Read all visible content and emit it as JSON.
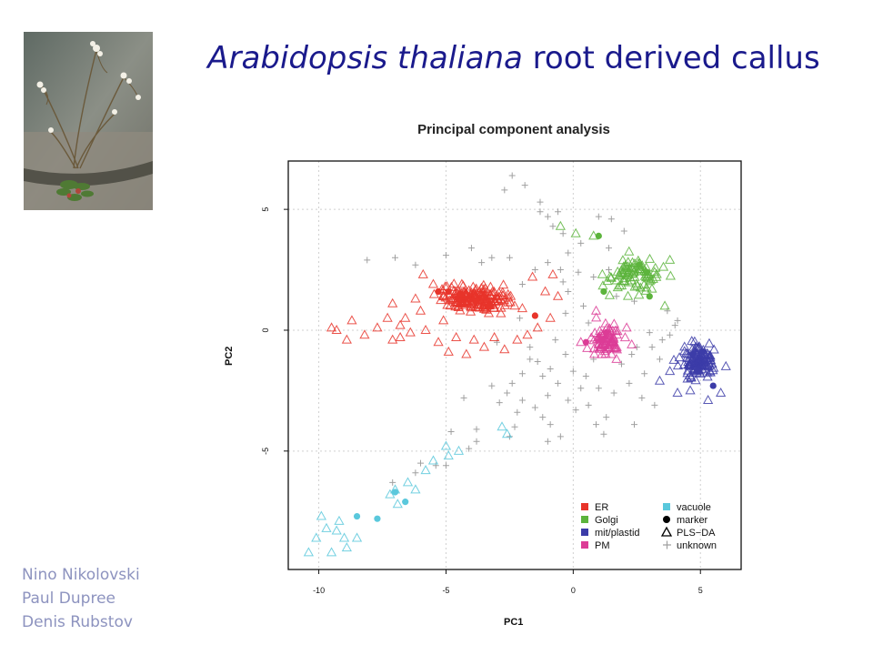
{
  "slide": {
    "title_italic": "Arabidopsis thaliana",
    "title_rest": " root derived callus",
    "authors": [
      "Nino Nikolovski",
      "Paul Dupree",
      "Denis Rubstov"
    ]
  },
  "colors": {
    "title": "#1a1a8c",
    "authors": "#8d93bf",
    "ER": "#e8342a",
    "Golgi": "#5cb43c",
    "mit_plastid": "#3c3ca8",
    "PM": "#dc3c96",
    "vacuole": "#5ac8dc",
    "marker": "#000000",
    "unknown": "#a0a0a0"
  },
  "photo": {
    "icon": "arabidopsis-plant-photo"
  },
  "chart_data": {
    "type": "scatter",
    "title": "Principal component analysis",
    "xlabel": "PC1",
    "ylabel": "PC2",
    "xlim": [
      -11.2,
      6.6
    ],
    "ylim": [
      -9.9,
      7
    ],
    "xticks": [
      -10,
      -5,
      0,
      5
    ],
    "yticks": [
      -5,
      0,
      5
    ],
    "grid": true,
    "legend_position": "bottom-right",
    "legend": [
      {
        "label": "ER",
        "symbol": "square",
        "color_key": "ER"
      },
      {
        "label": "vacuole",
        "symbol": "square",
        "color_key": "vacuole"
      },
      {
        "label": "Golgi",
        "symbol": "square",
        "color_key": "Golgi"
      },
      {
        "label": "marker",
        "symbol": "dot",
        "color_key": "marker"
      },
      {
        "label": "mit/plastid",
        "symbol": "square",
        "color_key": "mit_plastid"
      },
      {
        "label": "PLS−DA",
        "symbol": "triangle",
        "color_key": "marker"
      },
      {
        "label": "PM",
        "symbol": "square",
        "color_key": "PM"
      },
      {
        "label": "unknown",
        "symbol": "plus",
        "color_key": "unknown"
      }
    ],
    "series": [
      {
        "name": "ER",
        "color_key": "ER",
        "pls_da_count": 190,
        "pls_da_core": {
          "x_center": -3.8,
          "y_center": 1.3,
          "x_spread": 1.2,
          "y_spread": 0.45
        },
        "pls_da_tail": [
          [
            -9.5,
            0.1
          ],
          [
            -9.3,
            0
          ],
          [
            -8.9,
            -0.4
          ],
          [
            -8.7,
            0.4
          ],
          [
            -8.2,
            -0.2
          ],
          [
            -7.7,
            0.1
          ],
          [
            -7.3,
            0.5
          ],
          [
            -7.1,
            -0.4
          ],
          [
            -6.8,
            0.2
          ],
          [
            -6.6,
            0.5
          ],
          [
            -6.4,
            -0.1
          ],
          [
            -6.2,
            1.3
          ],
          [
            -6.0,
            0.8
          ],
          [
            -5.8,
            0
          ],
          [
            -5.5,
            1.9
          ],
          [
            -5.3,
            -0.5
          ],
          [
            -5.1,
            0.4
          ],
          [
            -4.9,
            -0.9
          ],
          [
            -4.6,
            -0.3
          ],
          [
            -4.2,
            -1.0
          ],
          [
            -3.9,
            -0.4
          ],
          [
            -3.5,
            -0.7
          ],
          [
            -3.1,
            -0.3
          ],
          [
            -2.7,
            -0.8
          ],
          [
            -2.2,
            -0.4
          ],
          [
            -1.8,
            -0.2
          ],
          [
            -1.4,
            0.1
          ],
          [
            -1.1,
            1.6
          ],
          [
            -0.8,
            2.3
          ],
          [
            -0.6,
            1.4
          ],
          [
            -0.9,
            0.5
          ],
          [
            -1.6,
            2.2
          ],
          [
            -5.9,
            2.3
          ],
          [
            -7.1,
            1.1
          ],
          [
            -6.8,
            -0.3
          ],
          [
            -2.0,
            0.9
          ]
        ],
        "markers": [
          [
            -5.3,
            1.6
          ],
          [
            -4.9,
            1.6
          ],
          [
            -4.4,
            1.5
          ],
          [
            -3.8,
            1.2
          ],
          [
            -3.3,
            1.0
          ],
          [
            -1.5,
            0.6
          ]
        ]
      },
      {
        "name": "Golgi",
        "color_key": "Golgi",
        "pls_da_count": 88,
        "pls_da_core": {
          "x_center": 2.4,
          "y_center": 2.3,
          "x_spread": 1.0,
          "y_spread": 0.7
        },
        "pls_da_tail": [
          [
            -0.5,
            4.3
          ],
          [
            0.1,
            4.0
          ],
          [
            0.8,
            3.9
          ],
          [
            3.8,
            2.9
          ],
          [
            3.6,
            1.0
          ]
        ],
        "markers": [
          [
            1.0,
            3.9
          ],
          [
            2.6,
            2.7
          ],
          [
            2.9,
            2.4
          ],
          [
            1.2,
            1.6
          ],
          [
            3.0,
            1.4
          ]
        ]
      },
      {
        "name": "mit/plastid",
        "color_key": "mit_plastid",
        "pls_da_count": 120,
        "pls_da_core": {
          "x_center": 4.9,
          "y_center": -1.2,
          "x_spread": 0.55,
          "y_spread": 0.6
        },
        "pls_da_tail": [
          [
            3.4,
            -2.1
          ],
          [
            3.8,
            -1.7
          ],
          [
            4.1,
            -2.6
          ],
          [
            4.6,
            -2.5
          ],
          [
            5.8,
            -2.6
          ],
          [
            5.3,
            -2.9
          ],
          [
            6.0,
            -1.5
          ]
        ],
        "markers": [
          [
            4.7,
            -1.0
          ],
          [
            4.9,
            -1.7
          ],
          [
            5.1,
            -0.9
          ],
          [
            5.5,
            -2.3
          ]
        ]
      },
      {
        "name": "PM",
        "color_key": "PM",
        "pls_da_count": 78,
        "pls_da_core": {
          "x_center": 1.2,
          "y_center": -0.4,
          "x_spread": 0.55,
          "y_spread": 0.55
        },
        "pls_da_tail": [
          [
            0.3,
            -0.5
          ],
          [
            2.1,
            0.1
          ],
          [
            2.3,
            -0.6
          ],
          [
            1.7,
            -1.2
          ],
          [
            0.9,
            0.8
          ]
        ],
        "markers": [
          [
            0.5,
            -0.5
          ],
          [
            1.1,
            -0.4
          ],
          [
            1.3,
            -0.1
          ]
        ]
      },
      {
        "name": "vacuole",
        "color_key": "vacuole",
        "pls_da": [
          [
            -10.4,
            -9.2
          ],
          [
            -10.1,
            -8.6
          ],
          [
            -9.9,
            -7.7
          ],
          [
            -9.7,
            -8.2
          ],
          [
            -9.5,
            -9.2
          ],
          [
            -9.3,
            -8.3
          ],
          [
            -9.2,
            -7.9
          ],
          [
            -9.0,
            -8.6
          ],
          [
            -8.9,
            -9.0
          ],
          [
            -8.5,
            -8.6
          ],
          [
            -7.2,
            -6.8
          ],
          [
            -7.0,
            -6.6
          ],
          [
            -6.9,
            -7.2
          ],
          [
            -6.5,
            -6.3
          ],
          [
            -6.2,
            -6.6
          ],
          [
            -5.8,
            -5.8
          ],
          [
            -5.5,
            -5.4
          ],
          [
            -5.0,
            -4.8
          ],
          [
            -4.9,
            -5.2
          ],
          [
            -4.5,
            -5.0
          ],
          [
            -2.6,
            -4.3
          ],
          [
            -2.8,
            -4.0
          ]
        ],
        "markers": [
          [
            -8.5,
            -7.7
          ],
          [
            -7.7,
            -7.8
          ],
          [
            -7.0,
            -6.7
          ],
          [
            -6.6,
            -7.1
          ]
        ]
      },
      {
        "name": "unknown",
        "color_key": "unknown",
        "points": [
          [
            -2.4,
            6.4
          ],
          [
            -2.7,
            5.8
          ],
          [
            -1.9,
            6.0
          ],
          [
            -1.3,
            5.3
          ],
          [
            -1.0,
            4.7
          ],
          [
            -0.6,
            4.9
          ],
          [
            -0.8,
            4.3
          ],
          [
            -1.3,
            4.9
          ],
          [
            -0.4,
            4.0
          ],
          [
            0.3,
            3.6
          ],
          [
            1.0,
            4.7
          ],
          [
            1.5,
            4.6
          ],
          [
            2.0,
            4.1
          ],
          [
            -8.1,
            2.9
          ],
          [
            -7.0,
            3.0
          ],
          [
            -6.2,
            2.7
          ],
          [
            -5.0,
            3.1
          ],
          [
            -4.0,
            3.4
          ],
          [
            -3.2,
            3.0
          ],
          [
            -2.5,
            3.0
          ],
          [
            -1.5,
            2.5
          ],
          [
            -1.0,
            2.8
          ],
          [
            -0.5,
            2.5
          ],
          [
            0.2,
            2.4
          ],
          [
            0.8,
            2.2
          ],
          [
            1.4,
            2.5
          ],
          [
            -0.2,
            1.6
          ],
          [
            0.4,
            1.0
          ],
          [
            -0.3,
            0.7
          ],
          [
            0.6,
            0.3
          ],
          [
            -1.7,
            -1.2
          ],
          [
            -1.4,
            -1.3
          ],
          [
            -1.2,
            -1.9
          ],
          [
            -1.0,
            -2.7
          ],
          [
            -0.9,
            -1.6
          ],
          [
            -0.6,
            -2.2
          ],
          [
            -0.3,
            -1.0
          ],
          [
            -0.2,
            -2.9
          ],
          [
            0.0,
            -1.7
          ],
          [
            0.1,
            -3.3
          ],
          [
            0.3,
            -2.4
          ],
          [
            0.5,
            -1.9
          ],
          [
            0.6,
            -3.1
          ],
          [
            0.8,
            -1.2
          ],
          [
            1.0,
            -2.4
          ],
          [
            1.3,
            -3.6
          ],
          [
            1.6,
            -2.6
          ],
          [
            1.9,
            -1.4
          ],
          [
            2.2,
            -2.2
          ],
          [
            2.3,
            -1.0
          ],
          [
            2.5,
            -0.7
          ],
          [
            2.8,
            -1.8
          ],
          [
            3.1,
            -0.7
          ],
          [
            3.5,
            -0.4
          ],
          [
            3.8,
            -0.2
          ],
          [
            4.0,
            0.2
          ],
          [
            3.7,
            0.8
          ],
          [
            4.1,
            0.4
          ],
          [
            3.4,
            -1.2
          ],
          [
            -2.0,
            -1.8
          ],
          [
            -2.4,
            -2.2
          ],
          [
            -2.6,
            -2.6
          ],
          [
            -2.0,
            -2.9
          ],
          [
            -1.5,
            -3.2
          ],
          [
            -1.2,
            -3.6
          ],
          [
            -0.9,
            -3.9
          ],
          [
            -0.5,
            -4.4
          ],
          [
            -1.0,
            -4.6
          ],
          [
            -2.3,
            -4.0
          ],
          [
            -2.5,
            -4.4
          ],
          [
            -3.8,
            -4.6
          ],
          [
            -4.1,
            -4.9
          ],
          [
            -5.0,
            -5.6
          ],
          [
            -5.4,
            -5.6
          ],
          [
            -6.0,
            -5.5
          ],
          [
            -6.2,
            -5.9
          ],
          [
            -7.1,
            -6.3
          ],
          [
            -4.3,
            -2.8
          ],
          [
            -3.2,
            -2.3
          ],
          [
            -3.8,
            -4.1
          ],
          [
            -4.8,
            -4.2
          ],
          [
            -2.9,
            -3.0
          ],
          [
            -2.2,
            -3.4
          ],
          [
            -1.7,
            -0.7
          ],
          [
            -0.7,
            -0.4
          ],
          [
            0.9,
            -3.9
          ],
          [
            1.2,
            -4.3
          ],
          [
            2.4,
            -3.9
          ],
          [
            2.7,
            -2.8
          ],
          [
            3.2,
            -3.1
          ],
          [
            3.0,
            -0.1
          ],
          [
            -3.0,
            -0.5
          ],
          [
            -2.1,
            0.5
          ],
          [
            -0.4,
            2.0
          ],
          [
            1.7,
            1.4
          ],
          [
            2.4,
            1.2
          ],
          [
            1.4,
            3.4
          ],
          [
            -0.2,
            3.2
          ],
          [
            -2.0,
            1.9
          ],
          [
            -3.6,
            2.8
          ]
        ]
      }
    ]
  }
}
